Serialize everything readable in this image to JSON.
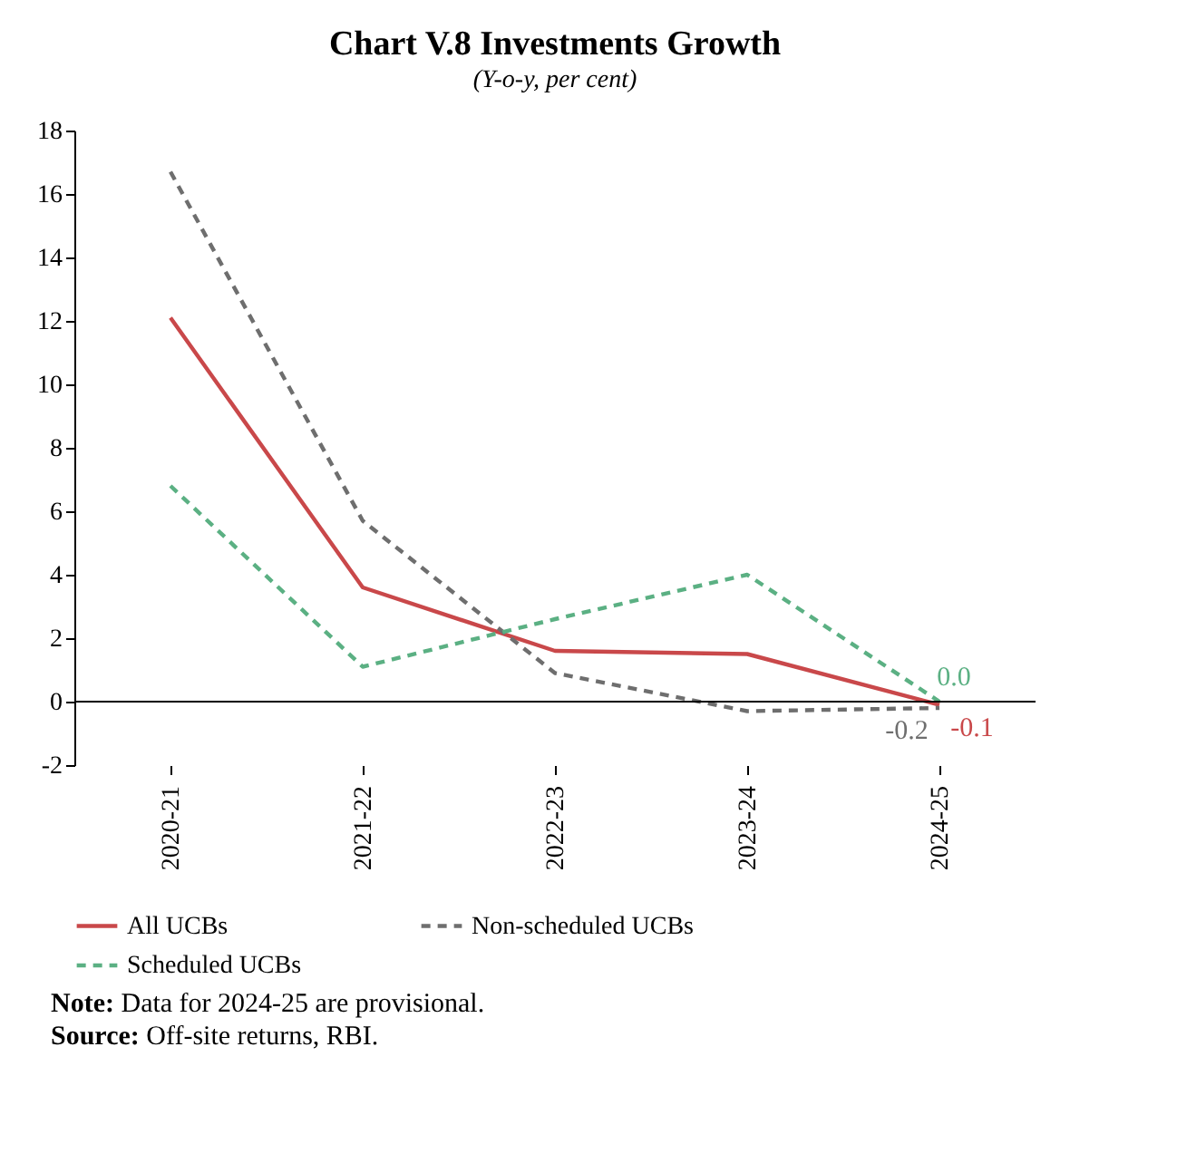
{
  "chart_data": {
    "type": "line",
    "title": "Chart V.8 Investments Growth",
    "subtitle": "(Y-o-y, per cent)",
    "categories": [
      "2020-21",
      "2021-22",
      "2022-23",
      "2023-24",
      "2024-25"
    ],
    "series": [
      {
        "name": "All UCBs",
        "color": "#c9484a",
        "line_style": "solid",
        "values": [
          12.1,
          3.6,
          1.6,
          1.5,
          -0.1
        ],
        "value_labels": [
          null,
          null,
          null,
          null,
          "-0.1"
        ]
      },
      {
        "name": "Non-scheduled UCBs",
        "color": "#6e6e6e",
        "line_style": "dashed",
        "values": [
          16.7,
          5.7,
          0.9,
          -0.3,
          -0.2
        ],
        "value_labels": [
          null,
          null,
          null,
          null,
          "-0.2"
        ]
      },
      {
        "name": "Scheduled UCBs",
        "color": "#5bb083",
        "line_style": "dashed",
        "values": [
          6.8,
          1.1,
          2.6,
          4.0,
          0.0
        ],
        "value_labels": [
          null,
          null,
          null,
          null,
          "0.0"
        ]
      }
    ],
    "ylim": [
      -2,
      18
    ],
    "yticks": [
      -2,
      0,
      2,
      4,
      6,
      8,
      10,
      12,
      14,
      16,
      18
    ],
    "ref_lines": [
      {
        "axis": "y",
        "value": 0,
        "color": "#000000"
      }
    ],
    "grid": false,
    "legend": "bottom",
    "marker": "none",
    "annotations": [
      "Note: Data for 2024-25 are provisional.",
      "Source: Off-site returns, RBI."
    ]
  }
}
